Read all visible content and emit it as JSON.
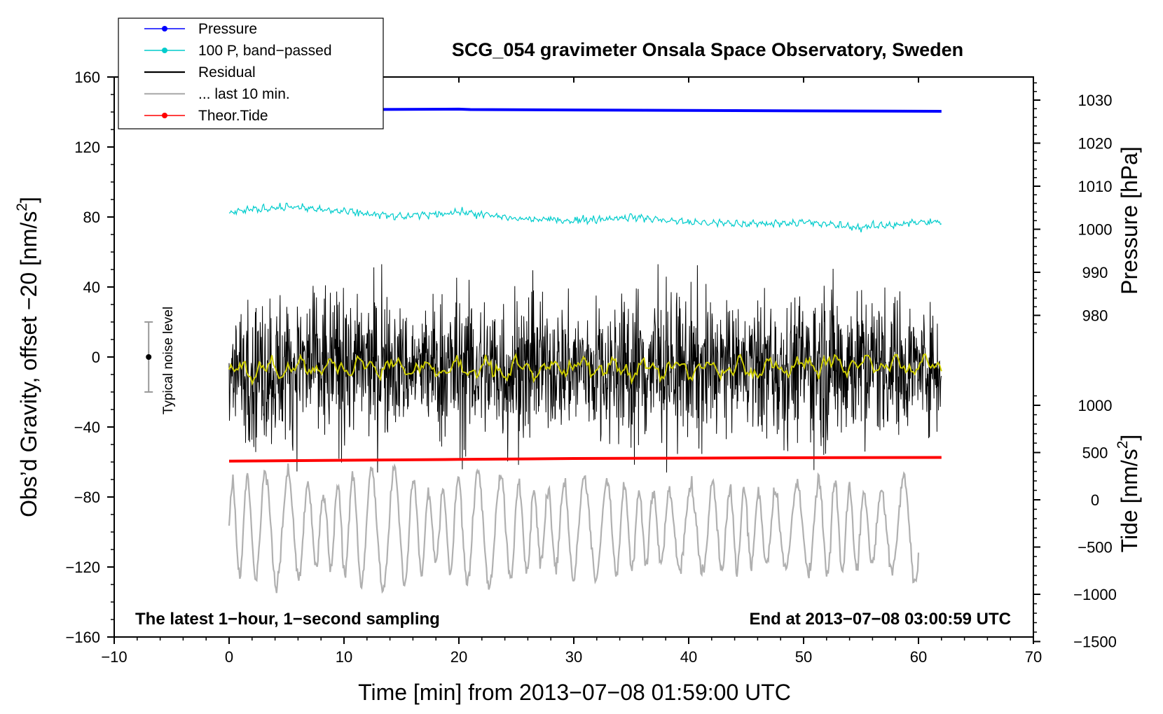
{
  "chart_data": {
    "type": "line",
    "title": "SCG_054 gravimeter Onsala Space Observatory, Sweden",
    "xlabel": "Time [min] from 2013−07−08 01:59:00 UTC",
    "ylabel_left": "Obs’d Gravity, offset −20 [nm/s²]",
    "ylabel_left_pre": "Obs’d Gravity, offset −20 [nm/s",
    "ylabel_left_sup": "2",
    "ylabel_left_post": "]",
    "ylabel_right_pressure": "Pressure [hPa]",
    "ylabel_right_tide": "Tide [nm/s²]",
    "ylabel_right_tide_pre": "Tide [nm/s",
    "ylabel_right_tide_sup": "2",
    "ylabel_right_tide_post": "]",
    "xlim": [
      -10,
      70
    ],
    "ylim_left": [
      -160,
      160
    ],
    "x_ticks": [
      -10,
      0,
      10,
      20,
      30,
      40,
      50,
      60,
      70
    ],
    "x_tick_labels": [
      "−10",
      "0",
      "10",
      "20",
      "30",
      "40",
      "50",
      "60",
      "70"
    ],
    "y_left_ticks": [
      160,
      120,
      80,
      40,
      0,
      -40,
      -80,
      -120,
      -160
    ],
    "y_left_tick_labels": [
      "160",
      "120",
      "80",
      "40",
      "0",
      "−40",
      "−80",
      "−120",
      "−160"
    ],
    "pressure_ticks": [
      1030,
      1020,
      1010,
      1000,
      990,
      980
    ],
    "pressure_tick_labels": [
      "1030",
      "1020",
      "1010",
      "1000",
      "990",
      "980"
    ],
    "tide_ticks": [
      1000,
      500,
      0,
      -500,
      -1000,
      -1500
    ],
    "tide_tick_labels": [
      "1000",
      "500",
      "0",
      "−500",
      "−1000",
      "−1500"
    ],
    "legend": {
      "placement": "top-left",
      "entries": [
        {
          "label": "Pressure",
          "color": "#0000ff",
          "marker": true
        },
        {
          "label": "100 P, band−passed",
          "color": "#00cccc",
          "marker": true
        },
        {
          "label": "Residual",
          "color": "#000000",
          "marker": false
        },
        {
          "label": "... last 10 min.",
          "color": "#b0b0b0",
          "marker": false
        },
        {
          "label": "Theor.Tide",
          "color": "#ff0000",
          "marker": true
        }
      ]
    },
    "annotations": {
      "left_note": "The latest 1−hour, 1−second sampling",
      "right_note": "End at 2013−07−08 03:00:59 UTC",
      "noise_label": "Typical noise level",
      "noise_bar": {
        "x": -7,
        "center": 0,
        "low": -20,
        "high": 20
      }
    },
    "series": [
      {
        "name": "Pressure",
        "axis": "pressure",
        "color": "#0000ff",
        "x": [
          0,
          10,
          20,
          21,
          30,
          40,
          50,
          62
        ],
        "y": [
          1027.8,
          1027.8,
          1027.9,
          1027.8,
          1027.7,
          1027.6,
          1027.5,
          1027.4
        ]
      },
      {
        "name": "100 P, band−passed",
        "axis": "left",
        "color": "#00cccc",
        "x": [
          0,
          5,
          10,
          15,
          20,
          25,
          30,
          35,
          40,
          45,
          50,
          55,
          60,
          62
        ],
        "y": [
          83,
          86,
          83,
          80,
          83,
          79,
          78,
          80,
          77,
          76,
          77,
          74,
          77,
          77
        ]
      },
      {
        "name": "Residual",
        "axis": "left",
        "color": "#000000",
        "x_range": [
          0,
          62
        ],
        "mean": -5,
        "typical_range": [
          -45,
          35
        ],
        "extremes": [
          -66,
          53
        ]
      },
      {
        "name": "Residual (smoothed)",
        "axis": "left",
        "color": "#cccc00",
        "x": [
          0,
          10,
          20,
          30,
          40,
          50,
          55,
          62
        ],
        "y": [
          -8,
          -5,
          -7,
          -6,
          -7,
          -5,
          -3,
          -6
        ]
      },
      {
        "name": "Theor.Tide",
        "axis": "left",
        "color": "#ff0000",
        "x": [
          0,
          10,
          20,
          30,
          40,
          47,
          62
        ],
        "y": [
          -59.5,
          -59,
          -58.5,
          -58,
          -57.8,
          -57.6,
          -57.4
        ]
      },
      {
        "name": "... last 10 min.",
        "axis": "tide",
        "color": "#b0b0b0",
        "x_range": [
          0,
          60
        ],
        "mean": -300,
        "typical_range": [
          -1000,
          450
        ]
      }
    ]
  }
}
